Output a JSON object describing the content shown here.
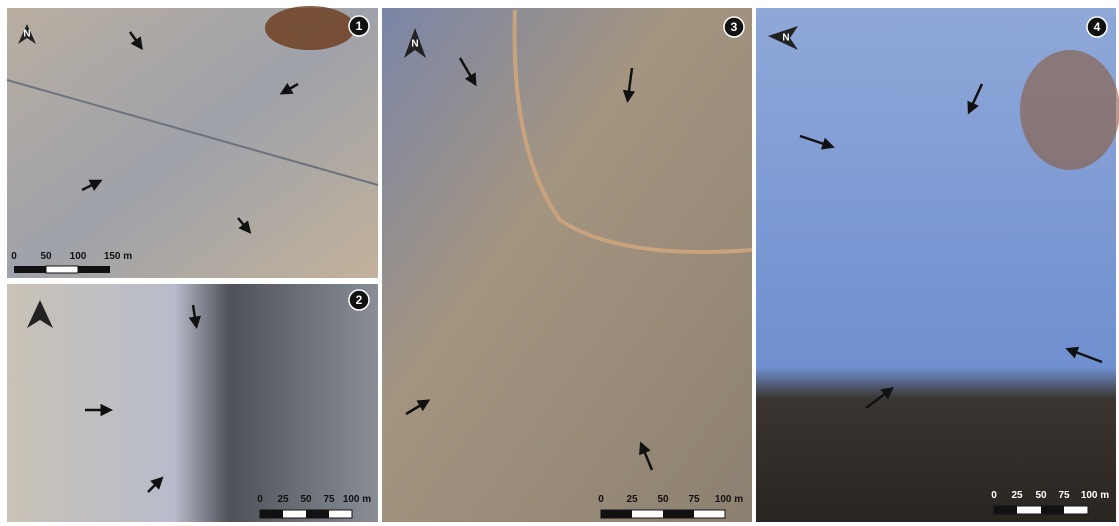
{
  "panels": [
    {
      "number": "1",
      "north": "N",
      "scale": {
        "labels": [
          "0",
          "50",
          "100",
          "150 m"
        ]
      }
    },
    {
      "number": "2",
      "scale": {
        "labels": [
          "0",
          "25",
          "50",
          "75",
          "100 m"
        ]
      }
    },
    {
      "number": "3",
      "north": "N",
      "scale": {
        "labels": [
          "0",
          "25",
          "50",
          "75",
          "100 m"
        ]
      }
    },
    {
      "number": "4",
      "north": "N",
      "scale": {
        "labels": [
          "0",
          "25",
          "50",
          "75",
          "100 m"
        ]
      }
    }
  ]
}
